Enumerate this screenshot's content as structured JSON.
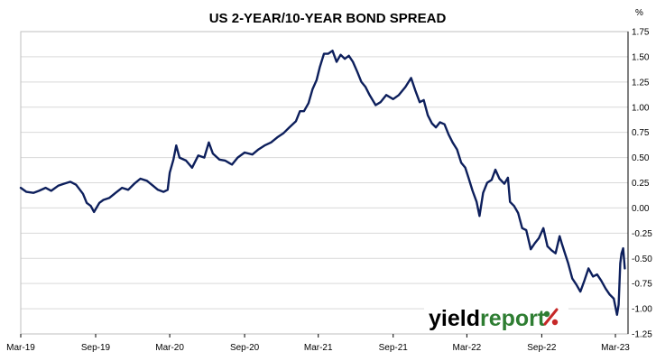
{
  "chart_data": {
    "type": "line",
    "title": "US 2-YEAR/10-YEAR BOND SPREAD",
    "ylabel": "%",
    "xlabel": "",
    "ylim": [
      -1.25,
      1.75
    ],
    "yticks": [
      1.75,
      1.5,
      1.25,
      1.0,
      0.75,
      0.5,
      0.25,
      0.0,
      -0.25,
      -0.5,
      -0.75,
      -1.0,
      -1.25
    ],
    "ytick_labels": [
      "1.75",
      "1.50",
      "1.25",
      "1.00",
      "0.75",
      "0.50",
      "0.25",
      "0.00",
      "-0.25",
      "-0.50",
      "-0.75",
      "-1.00",
      "-1.25"
    ],
    "xlim": [
      "2019-03-01",
      "2023-04-01"
    ],
    "xticks": [
      "Mar-19",
      "Sep-19",
      "Mar-20",
      "Sep-20",
      "Mar-21",
      "Sep-21",
      "Mar-22",
      "Sep-22",
      "Mar-23"
    ],
    "grid": "horizontal",
    "y_axis_position": "right",
    "series": [
      {
        "color": "#0d1f5c",
        "points": [
          [
            "2019-03-01",
            0.2
          ],
          [
            "2019-03-15",
            0.16
          ],
          [
            "2019-04-01",
            0.15
          ],
          [
            "2019-04-15",
            0.17
          ],
          [
            "2019-05-01",
            0.2
          ],
          [
            "2019-05-15",
            0.17
          ],
          [
            "2019-06-01",
            0.22
          ],
          [
            "2019-06-15",
            0.24
          ],
          [
            "2019-07-01",
            0.26
          ],
          [
            "2019-07-15",
            0.23
          ],
          [
            "2019-08-01",
            0.14
          ],
          [
            "2019-08-10",
            0.05
          ],
          [
            "2019-08-20",
            0.02
          ],
          [
            "2019-08-28",
            -0.04
          ],
          [
            "2019-09-10",
            0.05
          ],
          [
            "2019-09-20",
            0.08
          ],
          [
            "2019-10-05",
            0.1
          ],
          [
            "2019-10-20",
            0.15
          ],
          [
            "2019-11-05",
            0.2
          ],
          [
            "2019-11-20",
            0.18
          ],
          [
            "2019-12-05",
            0.24
          ],
          [
            "2019-12-20",
            0.29
          ],
          [
            "2020-01-05",
            0.27
          ],
          [
            "2020-01-20",
            0.22
          ],
          [
            "2020-02-01",
            0.18
          ],
          [
            "2020-02-15",
            0.16
          ],
          [
            "2020-02-25",
            0.18
          ],
          [
            "2020-03-01",
            0.35
          ],
          [
            "2020-03-10",
            0.48
          ],
          [
            "2020-03-17",
            0.62
          ],
          [
            "2020-03-25",
            0.5
          ],
          [
            "2020-04-10",
            0.47
          ],
          [
            "2020-04-25",
            0.4
          ],
          [
            "2020-05-10",
            0.52
          ],
          [
            "2020-05-25",
            0.5
          ],
          [
            "2020-06-05",
            0.65
          ],
          [
            "2020-06-15",
            0.54
          ],
          [
            "2020-07-01",
            0.48
          ],
          [
            "2020-07-15",
            0.47
          ],
          [
            "2020-08-01",
            0.43
          ],
          [
            "2020-08-15",
            0.5
          ],
          [
            "2020-09-01",
            0.55
          ],
          [
            "2020-09-20",
            0.53
          ],
          [
            "2020-10-05",
            0.58
          ],
          [
            "2020-10-20",
            0.62
          ],
          [
            "2020-11-05",
            0.65
          ],
          [
            "2020-11-20",
            0.7
          ],
          [
            "2020-12-05",
            0.74
          ],
          [
            "2020-12-20",
            0.8
          ],
          [
            "2021-01-05",
            0.86
          ],
          [
            "2021-01-15",
            0.96
          ],
          [
            "2021-01-25",
            0.96
          ],
          [
            "2021-02-05",
            1.04
          ],
          [
            "2021-02-15",
            1.18
          ],
          [
            "2021-02-25",
            1.27
          ],
          [
            "2021-03-05",
            1.4
          ],
          [
            "2021-03-15",
            1.53
          ],
          [
            "2021-03-25",
            1.53
          ],
          [
            "2021-04-05",
            1.56
          ],
          [
            "2021-04-15",
            1.45
          ],
          [
            "2021-04-25",
            1.52
          ],
          [
            "2021-05-05",
            1.48
          ],
          [
            "2021-05-15",
            1.51
          ],
          [
            "2021-05-25",
            1.45
          ],
          [
            "2021-06-05",
            1.35
          ],
          [
            "2021-06-15",
            1.25
          ],
          [
            "2021-06-25",
            1.2
          ],
          [
            "2021-07-05",
            1.12
          ],
          [
            "2021-07-20",
            1.02
          ],
          [
            "2021-08-01",
            1.05
          ],
          [
            "2021-08-15",
            1.12
          ],
          [
            "2021-09-01",
            1.08
          ],
          [
            "2021-09-15",
            1.12
          ],
          [
            "2021-10-01",
            1.2
          ],
          [
            "2021-10-15",
            1.29
          ],
          [
            "2021-10-25",
            1.17
          ],
          [
            "2021-11-05",
            1.05
          ],
          [
            "2021-11-15",
            1.07
          ],
          [
            "2021-11-25",
            0.92
          ],
          [
            "2021-12-05",
            0.84
          ],
          [
            "2021-12-15",
            0.8
          ],
          [
            "2021-12-25",
            0.85
          ],
          [
            "2022-01-05",
            0.83
          ],
          [
            "2022-01-15",
            0.73
          ],
          [
            "2022-01-25",
            0.65
          ],
          [
            "2022-02-05",
            0.58
          ],
          [
            "2022-02-15",
            0.45
          ],
          [
            "2022-02-25",
            0.4
          ],
          [
            "2022-03-05",
            0.3
          ],
          [
            "2022-03-15",
            0.17
          ],
          [
            "2022-03-25",
            0.06
          ],
          [
            "2022-04-01",
            -0.08
          ],
          [
            "2022-04-10",
            0.15
          ],
          [
            "2022-04-20",
            0.25
          ],
          [
            "2022-05-01",
            0.28
          ],
          [
            "2022-05-10",
            0.38
          ],
          [
            "2022-05-20",
            0.29
          ],
          [
            "2022-06-01",
            0.24
          ],
          [
            "2022-06-10",
            0.3
          ],
          [
            "2022-06-15",
            0.06
          ],
          [
            "2022-06-25",
            0.02
          ],
          [
            "2022-07-05",
            -0.05
          ],
          [
            "2022-07-15",
            -0.2
          ],
          [
            "2022-07-25",
            -0.22
          ],
          [
            "2022-08-05",
            -0.41
          ],
          [
            "2022-08-15",
            -0.35
          ],
          [
            "2022-08-25",
            -0.3
          ],
          [
            "2022-09-05",
            -0.2
          ],
          [
            "2022-09-15",
            -0.38
          ],
          [
            "2022-09-25",
            -0.42
          ],
          [
            "2022-10-05",
            -0.45
          ],
          [
            "2022-10-15",
            -0.28
          ],
          [
            "2022-10-20",
            -0.35
          ],
          [
            "2022-10-28",
            -0.45
          ],
          [
            "2022-11-05",
            -0.55
          ],
          [
            "2022-11-15",
            -0.7
          ],
          [
            "2022-11-25",
            -0.76
          ],
          [
            "2022-12-05",
            -0.83
          ],
          [
            "2022-12-15",
            -0.72
          ],
          [
            "2022-12-25",
            -0.6
          ],
          [
            "2023-01-05",
            -0.68
          ],
          [
            "2023-01-15",
            -0.66
          ],
          [
            "2023-01-25",
            -0.72
          ],
          [
            "2023-02-05",
            -0.8
          ],
          [
            "2023-02-15",
            -0.86
          ],
          [
            "2023-02-25",
            -0.9
          ],
          [
            "2023-03-05",
            -1.06
          ],
          [
            "2023-03-09",
            -0.96
          ],
          [
            "2023-03-13",
            -0.55
          ],
          [
            "2023-03-16",
            -0.45
          ],
          [
            "2023-03-20",
            -0.4
          ],
          [
            "2023-03-24",
            -0.6
          ]
        ]
      }
    ]
  },
  "logo": {
    "prefix": "yield",
    "suffix": "report",
    "symbol": "%",
    "prefix_color": "#000000",
    "suffix_color": "#2e7d32",
    "symbol_colors": [
      "#2e7d32",
      "#c62828"
    ]
  }
}
